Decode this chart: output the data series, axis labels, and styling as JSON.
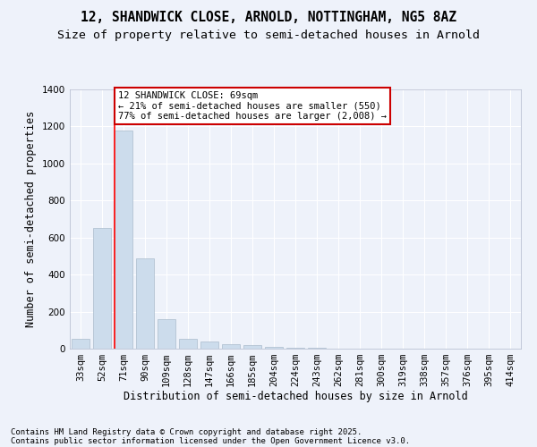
{
  "title1": "12, SHANDWICK CLOSE, ARNOLD, NOTTINGHAM, NG5 8AZ",
  "title2": "Size of property relative to semi-detached houses in Arnold",
  "xlabel": "Distribution of semi-detached houses by size in Arnold",
  "ylabel": "Number of semi-detached properties",
  "categories": [
    "33sqm",
    "52sqm",
    "71sqm",
    "90sqm",
    "109sqm",
    "128sqm",
    "147sqm",
    "166sqm",
    "185sqm",
    "204sqm",
    "224sqm",
    "243sqm",
    "262sqm",
    "281sqm",
    "300sqm",
    "319sqm",
    "338sqm",
    "357sqm",
    "376sqm",
    "395sqm",
    "414sqm"
  ],
  "values": [
    55,
    650,
    1180,
    490,
    160,
    55,
    40,
    25,
    20,
    10,
    5,
    3,
    2,
    1,
    1,
    0,
    0,
    0,
    0,
    0,
    0
  ],
  "bar_color": "#ccdcec",
  "bar_edge_color": "#aabccc",
  "annotation_line1": "12 SHANDWICK CLOSE: 69sqm",
  "annotation_line2": "← 21% of semi-detached houses are smaller (550)",
  "annotation_line3": "77% of semi-detached houses are larger (2,008) →",
  "annotation_box_facecolor": "#ffffff",
  "annotation_box_edgecolor": "#cc0000",
  "red_line_bar_index": 2,
  "ylim": [
    0,
    1400
  ],
  "yticks": [
    0,
    200,
    400,
    600,
    800,
    1000,
    1200,
    1400
  ],
  "bg_color": "#eef2fa",
  "plot_bg_color": "#eef2fa",
  "grid_color": "#ffffff",
  "footer1": "Contains HM Land Registry data © Crown copyright and database right 2025.",
  "footer2": "Contains public sector information licensed under the Open Government Licence v3.0.",
  "title_fontsize": 10.5,
  "subtitle_fontsize": 9.5,
  "axis_label_fontsize": 8.5,
  "tick_fontsize": 7.5,
  "annotation_fontsize": 7.5,
  "footer_fontsize": 6.5
}
